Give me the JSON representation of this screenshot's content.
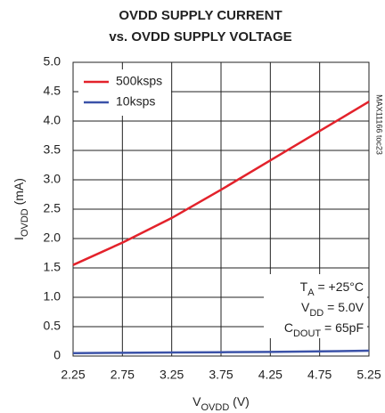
{
  "chart_data": {
    "type": "line",
    "title": [
      "OVDD SUPPLY CURRENT",
      "vs. OVDD SUPPLY VOLTAGE"
    ],
    "x_label": {
      "main": "V",
      "sub": "OVDD",
      "rest": " (V)"
    },
    "y_label": {
      "main": "I",
      "sub": "OVDD",
      "rest": " (mA)"
    },
    "side_note": "MAX11166 toc23",
    "annotations": [
      {
        "main": "T",
        "sub": "A",
        "rest": " = +25°C"
      },
      {
        "main": "V",
        "sub": "DD",
        "rest": " = 5.0V"
      },
      {
        "main": "C",
        "sub": "DOUT",
        "rest": " = 65pF"
      }
    ],
    "x": [
      2.25,
      2.75,
      3.25,
      3.75,
      4.25,
      4.75,
      5.25
    ],
    "series": [
      {
        "name": "500ksps",
        "color": "#e3222b",
        "values": [
          1.55,
          1.93,
          2.35,
          2.83,
          3.33,
          3.83,
          4.33
        ]
      },
      {
        "name": "10ksps",
        "color": "#3b52a8",
        "values": [
          0.05,
          0.055,
          0.06,
          0.065,
          0.07,
          0.08,
          0.09
        ]
      }
    ],
    "xlim": [
      2.25,
      5.25
    ],
    "xticks": [
      2.25,
      2.75,
      3.25,
      3.75,
      4.25,
      4.75,
      5.25
    ],
    "ylim": [
      0,
      5
    ],
    "yticks": [
      0,
      0.5,
      {
        "value": 1,
        "label": "1.0"
      },
      1.5,
      {
        "value": 2,
        "label": "2.0"
      },
      2.5,
      {
        "value": 3,
        "label": "3.0"
      },
      3.5,
      {
        "value": 4,
        "label": "4.0"
      },
      4.5,
      {
        "value": 5,
        "label": "5.0"
      }
    ],
    "grid": true,
    "legend": "upper left"
  }
}
